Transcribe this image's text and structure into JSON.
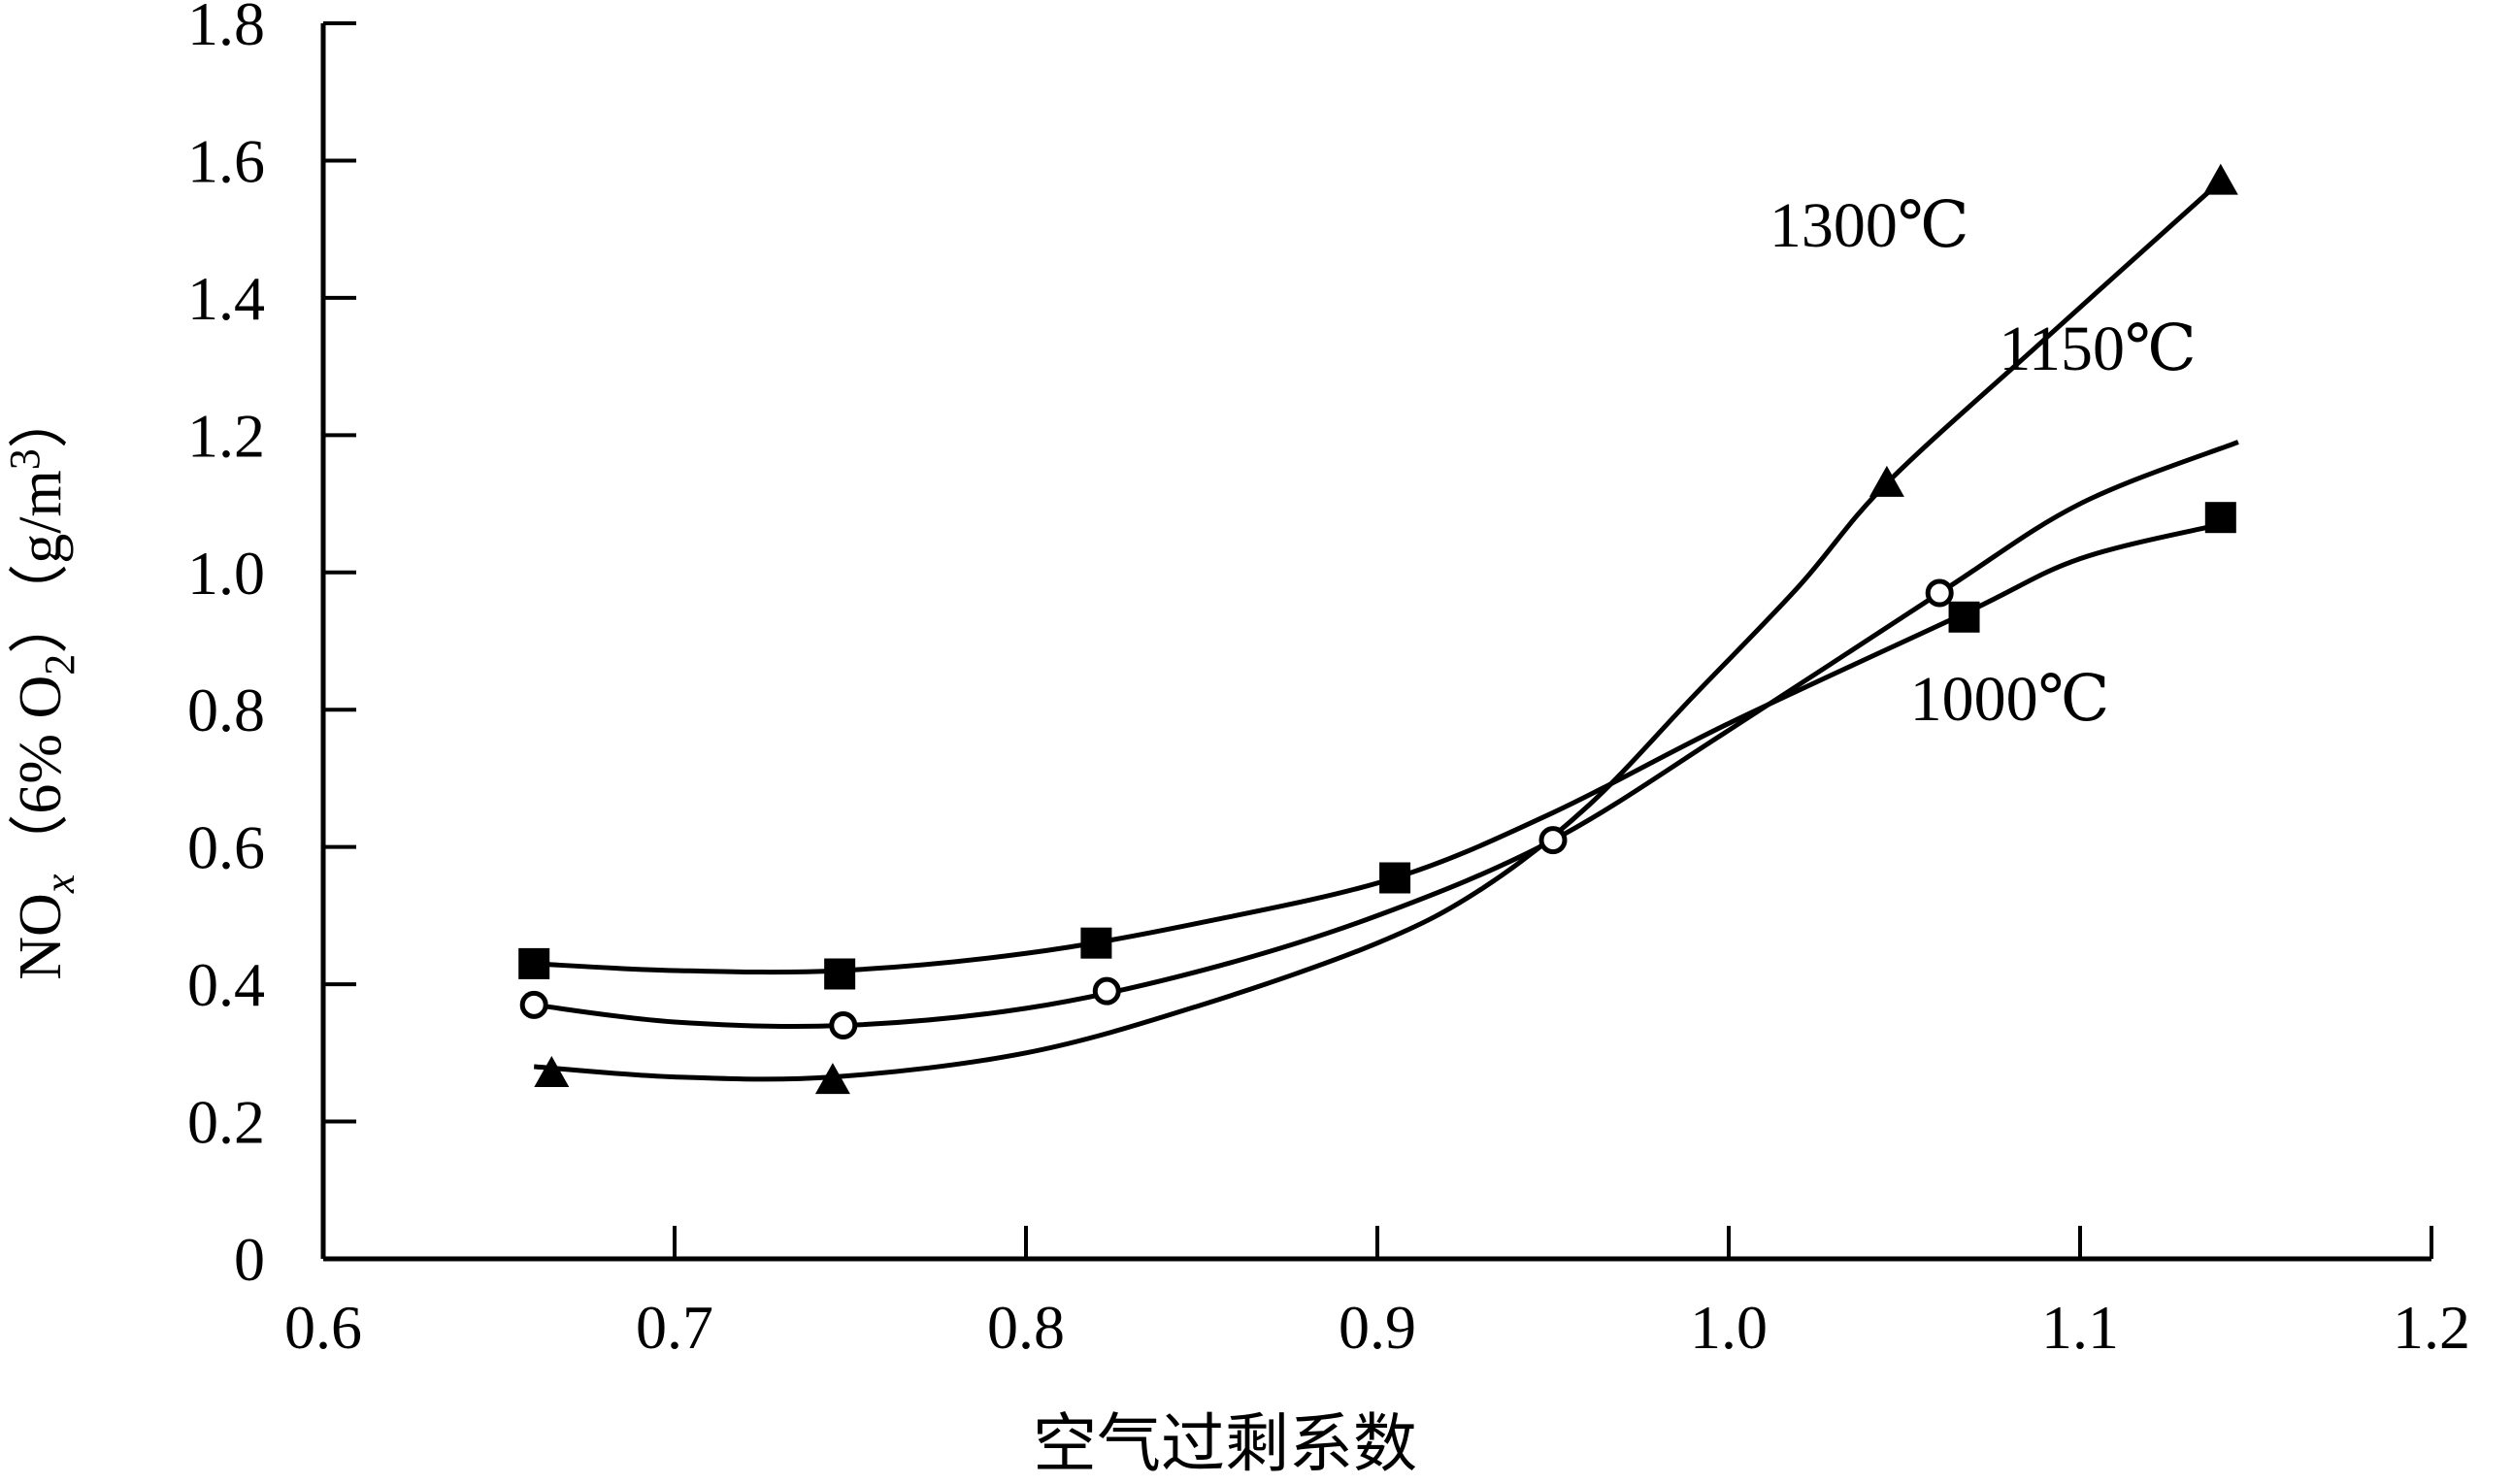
{
  "chart_data": {
    "type": "line",
    "title": "",
    "xlabel": "空气过剩系数",
    "ylabel": {
      "prefix": "NO",
      "sub1": "x",
      "middle": "（6% O",
      "sub2": "2",
      "after": "）（g/m",
      "sup": "3",
      "end": "）"
    },
    "xlim": [
      0.6,
      1.2
    ],
    "ylim": [
      0,
      1.8
    ],
    "xticks": [
      "0.6",
      "0.7",
      "0.8",
      "0.9",
      "1.0",
      "1.1",
      "1.2"
    ],
    "yticks": [
      "0",
      "0.2",
      "0.4",
      "0.6",
      "0.8",
      "1.0",
      "1.2",
      "1.4",
      "1.6",
      "1.8"
    ],
    "grid": false,
    "series": [
      {
        "name": "1300℃",
        "marker": "triangle",
        "points": [
          [
            0.665,
            0.27
          ],
          [
            0.745,
            0.26
          ],
          [
            1.045,
            1.13
          ],
          [
            1.14,
            1.57
          ]
        ],
        "curve": [
          [
            0.66,
            0.28
          ],
          [
            0.7,
            0.265
          ],
          [
            0.745,
            0.265
          ],
          [
            0.8,
            0.3
          ],
          [
            0.85,
            0.37
          ],
          [
            0.9,
            0.46
          ],
          [
            0.93,
            0.54
          ],
          [
            0.96,
            0.66
          ],
          [
            0.99,
            0.82
          ],
          [
            1.02,
            0.98
          ],
          [
            1.045,
            1.13
          ],
          [
            1.09,
            1.34
          ],
          [
            1.14,
            1.57
          ]
        ]
      },
      {
        "name": "1150℃",
        "marker": "circle",
        "points": [
          [
            0.66,
            0.37
          ],
          [
            0.748,
            0.34
          ],
          [
            0.823,
            0.39
          ],
          [
            0.95,
            0.61
          ],
          [
            1.06,
            0.97
          ]
        ],
        "curve": [
          [
            0.66,
            0.37
          ],
          [
            0.7,
            0.345
          ],
          [
            0.748,
            0.34
          ],
          [
            0.8,
            0.365
          ],
          [
            0.85,
            0.42
          ],
          [
            0.9,
            0.5
          ],
          [
            0.95,
            0.61
          ],
          [
            1.0,
            0.77
          ],
          [
            1.06,
            0.97
          ],
          [
            1.1,
            1.1
          ],
          [
            1.145,
            1.19
          ]
        ]
      },
      {
        "name": "1000℃",
        "marker": "square",
        "points": [
          [
            0.66,
            0.43
          ],
          [
            0.747,
            0.415
          ],
          [
            0.82,
            0.46
          ],
          [
            0.905,
            0.555
          ],
          [
            1.067,
            0.935
          ],
          [
            1.14,
            1.08
          ]
        ],
        "curve": [
          [
            0.66,
            0.43
          ],
          [
            0.7,
            0.42
          ],
          [
            0.747,
            0.42
          ],
          [
            0.8,
            0.445
          ],
          [
            0.85,
            0.49
          ],
          [
            0.905,
            0.555
          ],
          [
            0.95,
            0.65
          ],
          [
            1.0,
            0.78
          ],
          [
            1.067,
            0.94
          ],
          [
            1.1,
            1.02
          ],
          [
            1.14,
            1.07
          ]
        ]
      }
    ],
    "annotations": [
      {
        "text": "1300℃",
        "series": 0
      },
      {
        "text": "1150℃",
        "series": 1
      },
      {
        "text": "1000℃",
        "series": 2
      }
    ]
  }
}
